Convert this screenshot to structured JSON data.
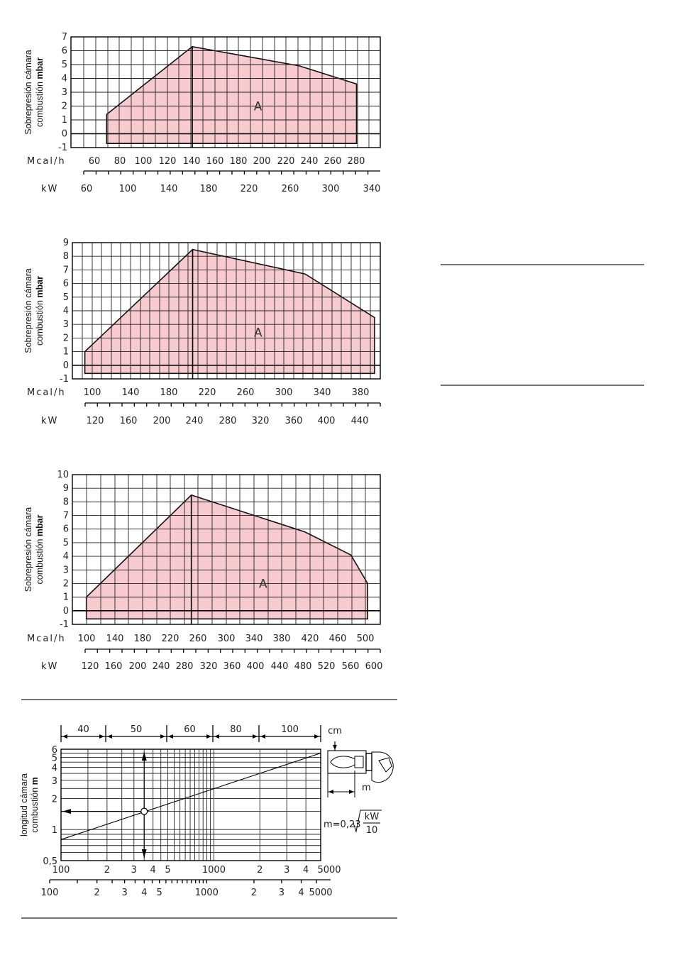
{
  "charts": [
    {
      "type": "area",
      "ylabel_line1": "Sobrepresión cámara",
      "ylabel_line2": "combustión ",
      "ylabel_unit": "mbar",
      "zone_label": "A",
      "mcal_label": "Mcal/h",
      "kw_label": "kW",
      "y_ticks": [
        "-1",
        "0",
        "1",
        "2",
        "3",
        "4",
        "5",
        "6",
        "7"
      ],
      "mcal_ticks": [
        "60",
        "80",
        "100",
        "120",
        "140",
        "160",
        "180",
        "200",
        "220",
        "240",
        "260",
        "280"
      ],
      "kw_ticks": [
        "60",
        "100",
        "140",
        "180",
        "220",
        "260",
        "300",
        "340"
      ]
    },
    {
      "type": "area",
      "ylabel_line1": "Sobrepresión cámara",
      "ylabel_line2": "combustión ",
      "ylabel_unit": "mbar",
      "zone_label": "A",
      "mcal_label": "Mcal/h",
      "kw_label": "kW",
      "y_ticks": [
        "-1",
        "0",
        "1",
        "2",
        "3",
        "4",
        "5",
        "6",
        "7",
        "8",
        "9"
      ],
      "mcal_ticks": [
        "100",
        "140",
        "180",
        "220",
        "260",
        "300",
        "340",
        "380"
      ],
      "kw_ticks": [
        "120",
        "160",
        "200",
        "240",
        "280",
        "320",
        "360",
        "400",
        "440"
      ]
    },
    {
      "type": "area",
      "ylabel_line1": "Sobrepresión cámara",
      "ylabel_line2": "combustión ",
      "ylabel_unit": "mbar",
      "zone_label": "A",
      "mcal_label": "Mcal/h",
      "kw_label": "kW",
      "y_ticks": [
        "-1",
        "0",
        "1",
        "2",
        "3",
        "4",
        "5",
        "6",
        "7",
        "8",
        "9",
        "10"
      ],
      "mcal_ticks": [
        "100",
        "140",
        "180",
        "220",
        "260",
        "300",
        "340",
        "380",
        "420",
        "460",
        "500"
      ],
      "kw_ticks": [
        "120",
        "160",
        "200",
        "240",
        "280",
        "320",
        "360",
        "400",
        "440",
        "480",
        "520",
        "560",
        "600"
      ]
    }
  ],
  "chart_data": [
    {
      "type": "area",
      "x_unit": "Mcal/h",
      "xlim": [
        40,
        300
      ],
      "ylim": [
        -1,
        7
      ],
      "x": [
        70,
        70,
        142,
        232,
        280,
        280
      ],
      "y": [
        -0.7,
        1.4,
        6.3,
        4.9,
        3.6,
        -0.7
      ],
      "grid": true
    },
    {
      "type": "area",
      "x_unit": "Mcal/h",
      "xlim": [
        80,
        400
      ],
      "ylim": [
        -1,
        9
      ],
      "x": [
        93,
        93,
        205,
        322,
        394,
        394
      ],
      "y": [
        -0.6,
        1.0,
        8.5,
        6.7,
        3.5,
        -0.6
      ],
      "grid": true
    },
    {
      "type": "area",
      "x_unit": "Mcal/h",
      "xlim": [
        80,
        520
      ],
      "ylim": [
        -1,
        10
      ],
      "x": [
        100,
        100,
        250,
        412,
        478,
        502,
        502
      ],
      "y": [
        -0.6,
        1.0,
        8.5,
        5.8,
        4.1,
        2.0,
        -0.6
      ],
      "grid": true
    },
    {
      "type": "line",
      "scale": "log",
      "ylabel_line1": "longitud cámara",
      "ylabel_line2": "combustión ",
      "ylabel_unit": "m",
      "xlim": [
        100,
        5000
      ],
      "ylim": [
        0.5,
        6
      ],
      "x_ticks": [
        "100",
        "2",
        "3",
        "4",
        "5",
        "1000",
        "2",
        "3",
        "4",
        "5000"
      ],
      "x2_ticks": [
        "100",
        "2",
        "3",
        "4",
        "5",
        "1000",
        "2",
        "3",
        "4",
        "5000"
      ],
      "y_ticks": [
        "0,5",
        "1",
        "2",
        "3",
        "4",
        "5",
        "6"
      ],
      "cm_label": "cm",
      "cm_ticks": [
        "40",
        "50",
        "60",
        "80",
        "100"
      ],
      "m_label": "m",
      "formula": "m=0,23",
      "formula_num": "kW",
      "formula_den": "10",
      "line": {
        "x": [
          100,
          5000
        ],
        "y": [
          0.8,
          5.5
        ]
      },
      "marker": {
        "x": 350,
        "y": 1.5
      }
    }
  ]
}
